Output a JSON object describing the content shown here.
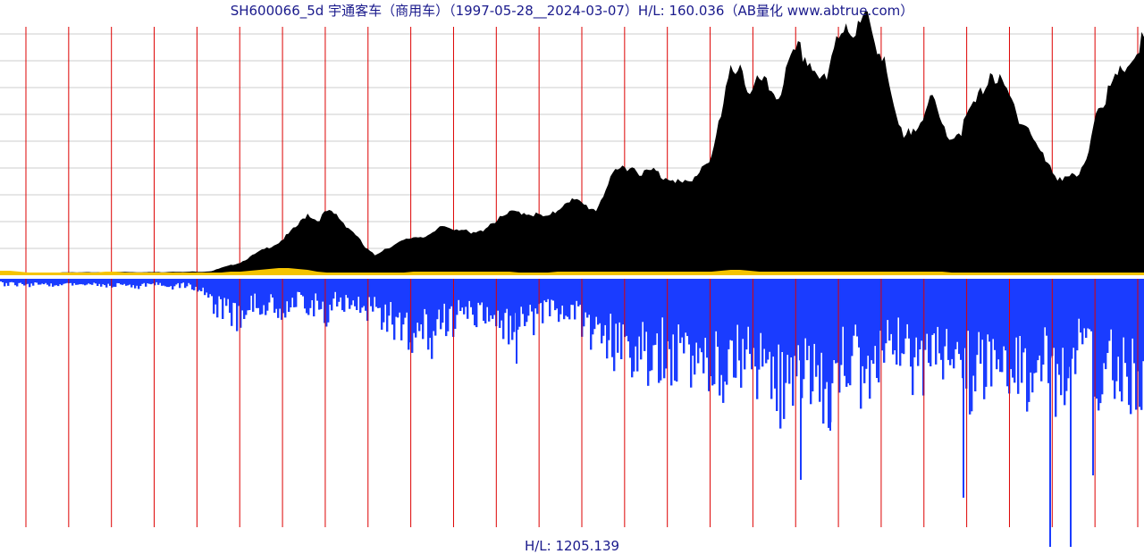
{
  "chart_data": {
    "type": "area",
    "title": "SH600066_5d 宇通客车（商用车）（1997-05-28__2024-03-07）H/L: 160.036（AB量化  www.abtrue.com）",
    "footer": "H/L: 1205.139",
    "x_range": [
      "1997-05-28",
      "2024-03-07"
    ],
    "grid": true,
    "colors": {
      "price_fill": "#000000",
      "volume_fill": "#1a3cff",
      "base_band": "#f5c400",
      "vertical_grid": "#dd0000",
      "horizontal_grid": "#cccccc",
      "title_text": "#1a1a8c"
    },
    "series": [
      {
        "values": [
          3.0,
          3.2,
          2.6,
          2.8,
          2.7,
          2.8,
          3.0,
          3.4,
          3.0,
          3.3,
          3.3,
          3.4,
          3.6,
          3.7,
          3.4,
          3.3,
          3.5,
          3.3,
          4.0,
          3.5,
          4.0,
          3.8,
          4.5,
          8.0,
          11.0,
          14.0,
          20.0,
          26.0,
          31.0,
          36.0,
          45.0,
          55.0,
          68.0,
          60.0,
          70.0,
          66.0,
          55.0,
          45.0,
          30.0,
          22.0,
          29.0,
          33.0,
          38.0,
          42.0,
          43.0,
          45.0,
          54.0,
          52.0,
          51.0,
          45.0,
          48.0,
          57.0,
          62.0,
          68.0,
          70.0,
          68.0,
          66.0,
          63.0,
          72.0,
          83.0,
          81.0,
          76.0,
          72.0,
          95.0,
          112.0,
          121.0,
          118.0,
          112.0,
          115.0,
          108.0,
          108.0,
          100.0,
          102.0,
          120.0,
          131.0,
          173.0,
          225.0,
          235.0,
          195.0,
          215.0,
          205.0,
          198.0,
          228.0,
          248.0,
          238.0,
          222.0,
          210.0,
          260.0,
          280.0,
          265.0,
          285.0,
          258.0,
          242.0,
          178.0,
          148.0,
          162.0,
          178.0,
          192.0,
          165.0,
          152.0,
          160.0,
          182.0,
          198.0,
          225.0,
          212.0,
          195.0,
          175.0,
          162.0,
          140.0,
          120.0,
          108.0,
          110.0,
          106.0,
          123.0,
          185.0,
          195.0,
          212.0,
          230.0,
          240.0,
          262.0
        ]
      },
      {
        "values": [
          5.0,
          6.0,
          5.5,
          6.0,
          5.0,
          5.5,
          6.0,
          6.0,
          6.5,
          7.0,
          7.5,
          6.5,
          6.0,
          6.0,
          8.0,
          6.0,
          5.5,
          5.0,
          8.0,
          6.0,
          9.0,
          10.0,
          25.0,
          30.0,
          40.0,
          35.0,
          22.0,
          30.0,
          25.0,
          35.0,
          25.0,
          22.0,
          30.0,
          25.0,
          35.0,
          20.0,
          28.0,
          25.0,
          30.0,
          30.0,
          40.0,
          45.0,
          55.0,
          58.0,
          48.0,
          60.0,
          40.0,
          45.0,
          30.0,
          35.0,
          45.0,
          35.0,
          40.0,
          48.0,
          35.0,
          45.0,
          40.0,
          35.0,
          30.0,
          38.0,
          40.0,
          50.0,
          55.0,
          60.0,
          70.0,
          72.0,
          80.0,
          75.0,
          90.0,
          70.0,
          80.0,
          75.0,
          80.0,
          85.0,
          80.0,
          100.0,
          90.0,
          80.0,
          90.0,
          95.0,
          100.0,
          110.0,
          105.0,
          90.0,
          85.0,
          100.0,
          110.0,
          95.0,
          80.0,
          85.0,
          100.0,
          80.0,
          70.0,
          75.0,
          60.0,
          85.0,
          90.0,
          80.0,
          85.0,
          75.0,
          80.0,
          100.0,
          95.0,
          80.0,
          70.0,
          85.0,
          90.0,
          95.0,
          80.0,
          85.0,
          100.0,
          90.0,
          70.0,
          80.0,
          100.0,
          90.0,
          85.0,
          100.0,
          95.0,
          110.0
        ]
      }
    ],
    "base_band_values": [
      5,
      5,
      4,
      3,
      3,
      3,
      3,
      3,
      3,
      3,
      3,
      4,
      4,
      3,
      3,
      3,
      3,
      3,
      3,
      3,
      3,
      3,
      3,
      3,
      4,
      4,
      5,
      6,
      7,
      8,
      8,
      7,
      6,
      4,
      3,
      3,
      3,
      3,
      3,
      3,
      3,
      3,
      3,
      4,
      4,
      4,
      4,
      4,
      4,
      4,
      4,
      4,
      4,
      4,
      3,
      3,
      3,
      3,
      4,
      4,
      4,
      4,
      4,
      4,
      4,
      4,
      4,
      4,
      4,
      4,
      4,
      4,
      4,
      4,
      4,
      5,
      6,
      6,
      5,
      4,
      4,
      4,
      4,
      4,
      4,
      4,
      4,
      4,
      4,
      4,
      4,
      4,
      4,
      4,
      4,
      4,
      4,
      4,
      4,
      3,
      3,
      3,
      3,
      3,
      3,
      3,
      3,
      3,
      3,
      3,
      3,
      3,
      3,
      3,
      3,
      3,
      3,
      3,
      3,
      3
    ],
    "vertical_marker_count": 27
  }
}
